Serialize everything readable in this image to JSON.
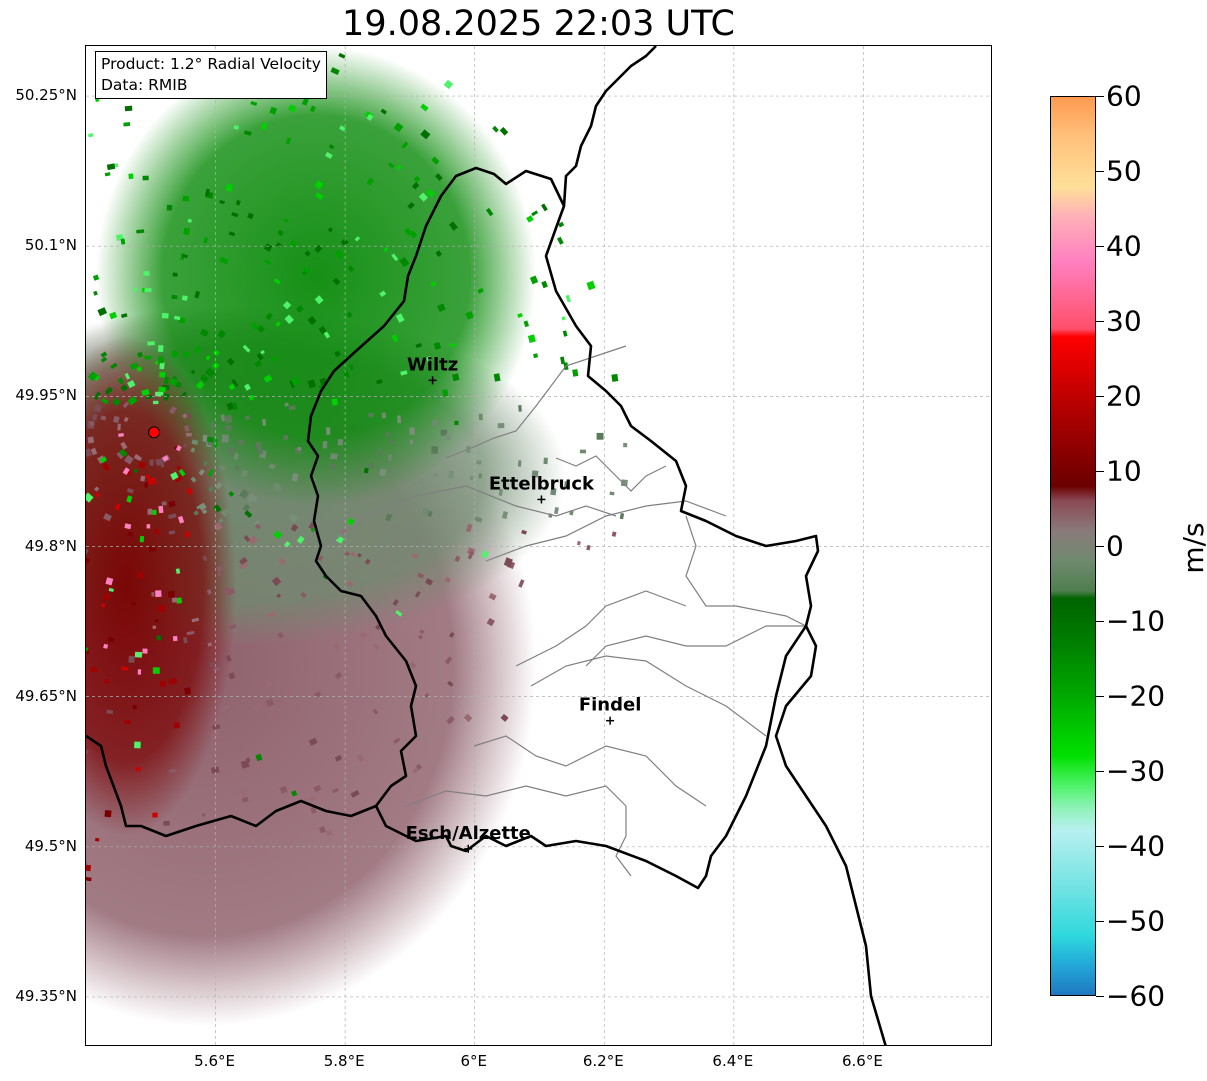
{
  "title": "19.08.2025 22:03 UTC",
  "info": {
    "product": "Product: 1.2° Radial Velocity",
    "source": "Data: RMIB"
  },
  "axes": {
    "lon_range": [
      5.4,
      6.8
    ],
    "lat_range": [
      49.3,
      50.3
    ],
    "lat_ticks": [
      {
        "value": 50.25,
        "label": "50.25°N"
      },
      {
        "value": 50.1,
        "label": "50.1°N"
      },
      {
        "value": 49.95,
        "label": "49.95°N"
      },
      {
        "value": 49.8,
        "label": "49.8°N"
      },
      {
        "value": 49.65,
        "label": "49.65°N"
      },
      {
        "value": 49.5,
        "label": "49.5°N"
      },
      {
        "value": 49.35,
        "label": "49.35°N"
      }
    ],
    "lon_ticks": [
      {
        "value": 5.6,
        "label": "5.6°E"
      },
      {
        "value": 5.8,
        "label": "5.8°E"
      },
      {
        "value": 6.0,
        "label": "6°E"
      },
      {
        "value": 6.2,
        "label": "6.2°E"
      },
      {
        "value": 6.4,
        "label": "6.4°E"
      },
      {
        "value": 6.6,
        "label": "6.6°E"
      }
    ],
    "grid": true
  },
  "radar": {
    "lon": 5.505,
    "lat": 49.914,
    "marker_color": "#ff0000"
  },
  "cities": [
    {
      "name": "Wiltz",
      "lon": 5.935,
      "lat": 49.966
    },
    {
      "name": "Ettelbruck",
      "lon": 6.103,
      "lat": 49.847
    },
    {
      "name": "Findel",
      "lon": 6.209,
      "lat": 49.626
    },
    {
      "name": "Esch/Alzette",
      "lon": 5.99,
      "lat": 49.498
    }
  ],
  "colorbar": {
    "unit": "m/s",
    "range": [
      -60,
      60
    ],
    "ticks": [
      {
        "value": 60,
        "label": "60"
      },
      {
        "value": 50,
        "label": "50"
      },
      {
        "value": 40,
        "label": "40"
      },
      {
        "value": 30,
        "label": "30"
      },
      {
        "value": 20,
        "label": "20"
      },
      {
        "value": 10,
        "label": "10"
      },
      {
        "value": 0,
        "label": "0"
      },
      {
        "value": -10,
        "label": "−10"
      },
      {
        "value": -20,
        "label": "−20"
      },
      {
        "value": -30,
        "label": "−30"
      },
      {
        "value": -40,
        "label": "−40"
      },
      {
        "value": -50,
        "label": "−50"
      },
      {
        "value": -60,
        "label": "−60"
      }
    ],
    "stops": [
      {
        "value": -60,
        "color": "#1f78c0"
      },
      {
        "value": -56,
        "color": "#22a8d8"
      },
      {
        "value": -52,
        "color": "#2fd9dd"
      },
      {
        "value": -45,
        "color": "#79e4e4"
      },
      {
        "value": -38,
        "color": "#b8f0f0"
      },
      {
        "value": -35,
        "color": "#8ef2b8"
      },
      {
        "value": -32,
        "color": "#4ff26a"
      },
      {
        "value": -28,
        "color": "#00e000"
      },
      {
        "value": -20,
        "color": "#00a800"
      },
      {
        "value": -12,
        "color": "#007a00"
      },
      {
        "value": -7,
        "color": "#006400"
      },
      {
        "value": -6,
        "color": "#4f7e4f"
      },
      {
        "value": -2,
        "color": "#6f8a6f"
      },
      {
        "value": 2,
        "color": "#8a7a7a"
      },
      {
        "value": 6,
        "color": "#8a4a55"
      },
      {
        "value": 8,
        "color": "#6b0000"
      },
      {
        "value": 18,
        "color": "#b00000"
      },
      {
        "value": 28,
        "color": "#ff0000"
      },
      {
        "value": 29,
        "color": "#ff4f6a"
      },
      {
        "value": 38,
        "color": "#ff80c0"
      },
      {
        "value": 44,
        "color": "#ffb0b8"
      },
      {
        "value": 48,
        "color": "#ffe099"
      },
      {
        "value": 55,
        "color": "#ffbf7a"
      },
      {
        "value": 60,
        "color": "#ff9a50"
      }
    ]
  },
  "colors": {
    "border": "#000000",
    "canton_lines": "#808080",
    "grid": "#b0b0b0",
    "radar_green": "#0a8a0a",
    "radar_grey_green": "#6f8a6f",
    "radar_mauve": "#8a5a66",
    "radar_dark_red": "#7a0000"
  }
}
